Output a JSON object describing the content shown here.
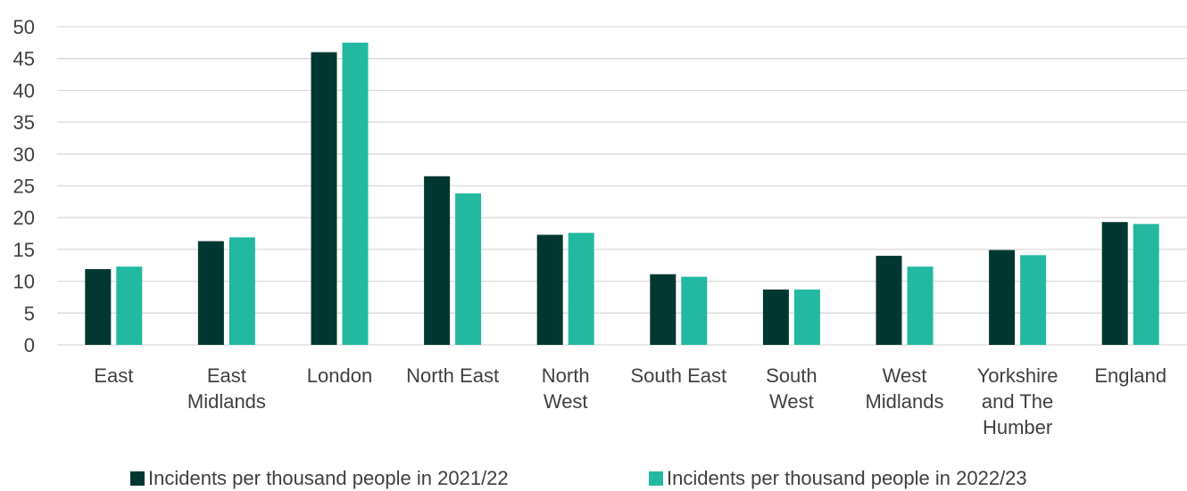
{
  "chart_data": {
    "type": "bar",
    "title": "",
    "xlabel": "",
    "ylabel": "",
    "ylim": [
      0,
      50
    ],
    "yticks": [
      0,
      5,
      10,
      15,
      20,
      25,
      30,
      35,
      40,
      45,
      50
    ],
    "grid": true,
    "legend_position": "bottom",
    "categories": [
      "East",
      "East Midlands",
      "London",
      "North East",
      "North West",
      "South East",
      "South West",
      "West Midlands",
      "Yorkshire and The Humber",
      "England"
    ],
    "category_lines": [
      [
        "East"
      ],
      [
        "East",
        "Midlands"
      ],
      [
        "London"
      ],
      [
        "North East"
      ],
      [
        "North",
        "West"
      ],
      [
        "South East"
      ],
      [
        "South",
        "West"
      ],
      [
        "West",
        "Midlands"
      ],
      [
        "Yorkshire",
        "and The",
        "Humber"
      ],
      [
        "England"
      ]
    ],
    "series": [
      {
        "name": "Incidents per thousand people in 2021/22",
        "color": "#003831",
        "values": [
          11.9,
          16.3,
          46.0,
          26.5,
          17.3,
          11.1,
          8.7,
          14.0,
          14.9,
          19.3
        ]
      },
      {
        "name": "Incidents per thousand people in 2022/23",
        "color": "#22b9a0",
        "values": [
          12.3,
          16.9,
          47.5,
          23.8,
          17.6,
          10.7,
          8.7,
          12.3,
          14.1,
          19.0
        ]
      }
    ]
  }
}
